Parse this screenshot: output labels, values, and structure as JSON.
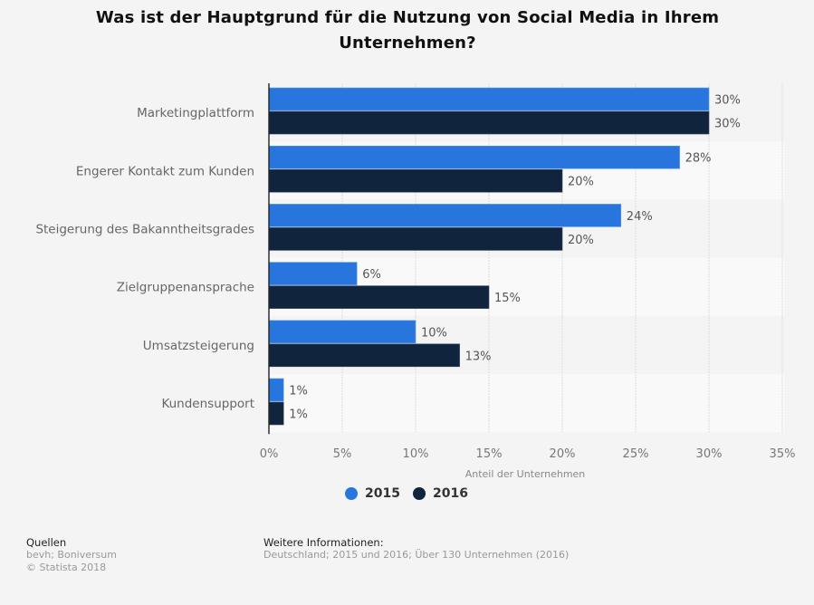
{
  "title": "Was ist der Hauptgrund für die Nutzung von Social Media in Ihrem Unternehmen?",
  "chart_data": {
    "type": "bar",
    "orientation": "horizontal",
    "title": "Was ist der Hauptgrund für die Nutzung von Social Media in Ihrem Unternehmen?",
    "xlabel": "Anteil der Unternehmen",
    "ylabel": "",
    "xlim": [
      0,
      35
    ],
    "xticks": [
      0,
      5,
      10,
      15,
      20,
      25,
      30,
      35
    ],
    "xtick_labels": [
      "0%",
      "5%",
      "10%",
      "15%",
      "20%",
      "25%",
      "30%",
      "35%"
    ],
    "grid": true,
    "legend_position": "bottom-center",
    "categories": [
      "Marketingplattform",
      "Engerer Kontakt zum Kunden",
      "Steigerung des Bakanntheitsgrades",
      "Zielgruppenansprache",
      "Umsatzsteigerung",
      "Kundensupport"
    ],
    "series": [
      {
        "name": "2015",
        "color": "#2876dd",
        "values": [
          30,
          28,
          24,
          6,
          10,
          1
        ],
        "labels": [
          "30%",
          "28%",
          "24%",
          "6%",
          "10%",
          "1%"
        ]
      },
      {
        "name": "2016",
        "color": "#10253d",
        "values": [
          30,
          20,
          20,
          15,
          13,
          1
        ],
        "labels": [
          "30%",
          "20%",
          "20%",
          "15%",
          "13%",
          "1%"
        ]
      }
    ]
  },
  "footer": {
    "sources_heading": "Quellen",
    "sources": "bevh; Boniversum",
    "copyright": "© Statista 2018",
    "info_heading": "Weitere Informationen:",
    "info": "Deutschland; 2015 und 2016; Über 130 Unternehmen (2016)"
  }
}
